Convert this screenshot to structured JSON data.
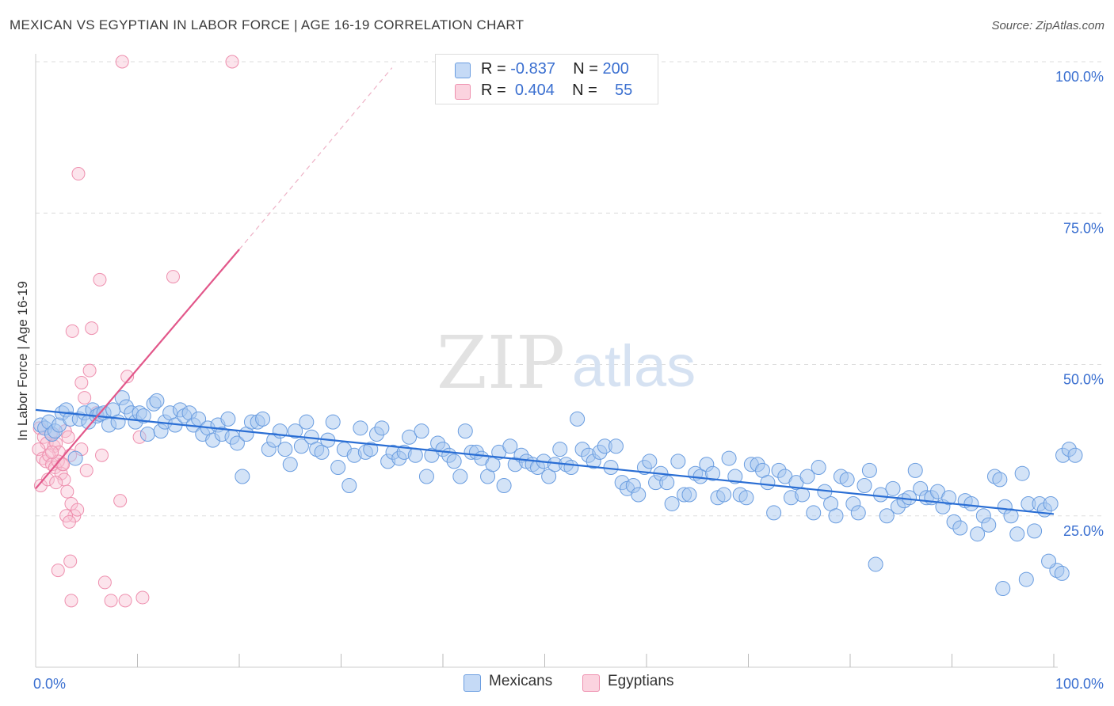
{
  "header": {
    "title": "MEXICAN VS EGYPTIAN IN LABOR FORCE | AGE 16-19 CORRELATION CHART",
    "source": "Source: ZipAtlas.com"
  },
  "watermark": {
    "zip": "ZIP",
    "atlas": "atlas"
  },
  "legend": {
    "rows": [
      {
        "r_label": "R =",
        "r_value": "-0.837",
        "n_label": "N =",
        "n_value": "200",
        "color": "#a8c8f0"
      },
      {
        "r_label": "R =",
        "r_value": "0.404",
        "n_label": "N =",
        "n_value": "55",
        "color": "#f5b8cb"
      }
    ],
    "bottom": [
      {
        "label": "Mexicans",
        "color": "#a8c8f0"
      },
      {
        "label": "Egyptians",
        "color": "#f5b8cb"
      }
    ]
  },
  "colors": {
    "mexicans_fill": "#a8c8f0",
    "mexicans_stroke": "#6a9de0",
    "mexicans_line": "#2a6ed4",
    "egyptians_fill": "#f8c4d4",
    "egyptians_stroke": "#ee8fae",
    "egyptians_line": "#e2578a",
    "tick_label": "#3a6fd0",
    "grid": "#dddddd"
  },
  "chart_data": {
    "type": "scatter",
    "title": "MEXICAN VS EGYPTIAN IN LABOR FORCE | AGE 16-19 CORRELATION CHART",
    "xlabel": "",
    "ylabel": "In Labor Force | Age 16-19",
    "xlim": [
      0,
      100
    ],
    "ylim": [
      0,
      100
    ],
    "x_tick_labels": [
      "0.0%",
      "100.0%"
    ],
    "y_ticks": [
      25,
      50,
      75,
      100
    ],
    "y_tick_labels": [
      "25.0%",
      "50.0%",
      "75.0%",
      "100.0%"
    ],
    "grid": true,
    "legend_position": "top-center",
    "series": [
      {
        "name": "Mexicans",
        "r": -0.837,
        "n": 200,
        "trend": {
          "x": [
            0,
            100
          ],
          "y": [
            42.5,
            25.3
          ]
        },
        "points": [
          [
            0.5,
            40
          ],
          [
            0.9,
            39.5
          ],
          [
            1.3,
            40.5
          ],
          [
            1.6,
            38.5
          ],
          [
            1.9,
            39
          ],
          [
            2.3,
            40
          ],
          [
            2.6,
            42
          ],
          [
            3.0,
            42.5
          ],
          [
            3.4,
            41
          ],
          [
            3.9,
            34.5
          ],
          [
            4.3,
            41
          ],
          [
            4.8,
            42
          ],
          [
            5.2,
            40.5
          ],
          [
            5.6,
            42.5
          ],
          [
            6.0,
            41.5
          ],
          [
            6.3,
            41.8
          ],
          [
            6.7,
            42
          ],
          [
            7.2,
            40
          ],
          [
            7.6,
            42.5
          ],
          [
            8.1,
            40.5
          ],
          [
            8.5,
            44.5
          ],
          [
            8.9,
            43
          ],
          [
            9.4,
            42
          ],
          [
            9.8,
            40.5
          ],
          [
            10.2,
            42
          ],
          [
            10.6,
            41.5
          ],
          [
            11.0,
            38.5
          ],
          [
            11.6,
            43.5
          ],
          [
            11.9,
            44
          ],
          [
            12.3,
            39
          ],
          [
            12.7,
            40.5
          ],
          [
            13.2,
            42
          ],
          [
            13.7,
            40
          ],
          [
            14.2,
            42.5
          ],
          [
            14.6,
            41.5
          ],
          [
            15.1,
            42
          ],
          [
            15.5,
            40
          ],
          [
            16.0,
            41
          ],
          [
            16.4,
            38.5
          ],
          [
            16.9,
            39.5
          ],
          [
            17.4,
            37.5
          ],
          [
            17.9,
            40
          ],
          [
            18.3,
            38.5
          ],
          [
            18.9,
            41
          ],
          [
            19.3,
            38
          ],
          [
            19.8,
            37
          ],
          [
            20.3,
            31.5
          ],
          [
            20.7,
            38.5
          ],
          [
            21.2,
            40.5
          ],
          [
            21.8,
            40.5
          ],
          [
            22.3,
            41
          ],
          [
            22.9,
            36
          ],
          [
            23.4,
            37.5
          ],
          [
            24.0,
            39
          ],
          [
            24.5,
            36
          ],
          [
            25.0,
            33.5
          ],
          [
            25.5,
            39
          ],
          [
            26.1,
            36.5
          ],
          [
            26.6,
            40.5
          ],
          [
            27.1,
            38
          ],
          [
            27.6,
            36
          ],
          [
            28.1,
            35.5
          ],
          [
            28.7,
            37.5
          ],
          [
            29.2,
            40.5
          ],
          [
            29.7,
            33
          ],
          [
            30.3,
            36
          ],
          [
            30.8,
            30
          ],
          [
            31.3,
            35
          ],
          [
            31.9,
            39.5
          ],
          [
            32.4,
            35.5
          ],
          [
            32.9,
            36
          ],
          [
            33.5,
            38.5
          ],
          [
            34.0,
            39.5
          ],
          [
            34.6,
            34
          ],
          [
            35.1,
            35.5
          ],
          [
            35.7,
            34.5
          ],
          [
            36.2,
            35.5
          ],
          [
            36.7,
            38
          ],
          [
            37.3,
            35
          ],
          [
            37.9,
            39
          ],
          [
            38.4,
            31.5
          ],
          [
            38.9,
            35
          ],
          [
            39.5,
            37
          ],
          [
            40.0,
            36
          ],
          [
            40.6,
            35
          ],
          [
            41.1,
            34
          ],
          [
            41.7,
            31.5
          ],
          [
            42.2,
            39
          ],
          [
            42.8,
            35.5
          ],
          [
            43.3,
            35.5
          ],
          [
            43.8,
            34.5
          ],
          [
            44.4,
            31.5
          ],
          [
            44.9,
            33.5
          ],
          [
            45.5,
            35.5
          ],
          [
            46.0,
            30
          ],
          [
            46.6,
            36.5
          ],
          [
            47.1,
            33.5
          ],
          [
            47.7,
            35
          ],
          [
            48.2,
            34
          ],
          [
            48.8,
            33.5
          ],
          [
            49.3,
            33
          ],
          [
            49.9,
            34
          ],
          [
            50.4,
            31.5
          ],
          [
            51.0,
            33.5
          ],
          [
            51.5,
            36
          ],
          [
            52.1,
            33.5
          ],
          [
            52.6,
            33
          ],
          [
            53.2,
            41
          ],
          [
            53.7,
            36
          ],
          [
            54.3,
            35
          ],
          [
            54.8,
            34
          ],
          [
            55.4,
            35.5
          ],
          [
            55.9,
            36.5
          ],
          [
            56.5,
            33
          ],
          [
            57.0,
            36.5
          ],
          [
            57.6,
            30.5
          ],
          [
            58.1,
            29.5
          ],
          [
            58.7,
            30
          ],
          [
            59.2,
            28.5
          ],
          [
            59.8,
            33
          ],
          [
            60.3,
            34
          ],
          [
            60.9,
            30.5
          ],
          [
            61.4,
            32
          ],
          [
            62.0,
            30.5
          ],
          [
            62.5,
            27
          ],
          [
            63.1,
            34
          ],
          [
            63.7,
            28.5
          ],
          [
            64.2,
            28.5
          ],
          [
            64.8,
            32
          ],
          [
            65.3,
            31.5
          ],
          [
            65.9,
            33.5
          ],
          [
            66.5,
            32
          ],
          [
            67.0,
            28
          ],
          [
            67.6,
            28.5
          ],
          [
            68.1,
            34.5
          ],
          [
            68.7,
            31.5
          ],
          [
            69.2,
            28.5
          ],
          [
            69.8,
            28
          ],
          [
            70.3,
            33.5
          ],
          [
            70.9,
            33.5
          ],
          [
            71.4,
            32.5
          ],
          [
            71.9,
            30.5
          ],
          [
            72.5,
            25.5
          ],
          [
            73.0,
            32.5
          ],
          [
            73.6,
            31.5
          ],
          [
            74.2,
            28
          ],
          [
            74.7,
            30.5
          ],
          [
            75.3,
            28.5
          ],
          [
            75.8,
            31.5
          ],
          [
            76.4,
            25.5
          ],
          [
            76.9,
            33
          ],
          [
            77.5,
            29
          ],
          [
            78.1,
            27
          ],
          [
            78.6,
            25
          ],
          [
            79.1,
            31.5
          ],
          [
            79.7,
            31
          ],
          [
            80.3,
            27
          ],
          [
            80.8,
            25.5
          ],
          [
            81.4,
            30
          ],
          [
            81.9,
            32.5
          ],
          [
            82.5,
            17
          ],
          [
            83.0,
            28.5
          ],
          [
            83.6,
            25
          ],
          [
            84.2,
            29.5
          ],
          [
            84.7,
            26.5
          ],
          [
            85.3,
            27.5
          ],
          [
            85.8,
            28
          ],
          [
            86.4,
            32.5
          ],
          [
            86.9,
            29.5
          ],
          [
            87.5,
            28
          ],
          [
            88.0,
            28
          ],
          [
            88.6,
            29
          ],
          [
            89.1,
            26.5
          ],
          [
            89.7,
            28
          ],
          [
            90.2,
            24
          ],
          [
            90.8,
            23
          ],
          [
            91.3,
            27.5
          ],
          [
            91.9,
            27
          ],
          [
            92.5,
            22
          ],
          [
            93.1,
            25
          ],
          [
            93.6,
            23.5
          ],
          [
            94.2,
            31.5
          ],
          [
            94.7,
            31
          ],
          [
            95.2,
            26.5
          ],
          [
            95.8,
            25
          ],
          [
            96.4,
            22
          ],
          [
            96.9,
            32
          ],
          [
            97.5,
            27
          ],
          [
            98.1,
            22.5
          ],
          [
            98.6,
            27
          ],
          [
            99.1,
            26
          ],
          [
            99.7,
            27
          ],
          [
            100.3,
            16
          ],
          [
            100.9,
            35
          ],
          [
            101.5,
            36
          ],
          [
            102.1,
            35
          ],
          [
            95.0,
            13
          ],
          [
            97.3,
            14.5
          ],
          [
            99.5,
            17.5
          ],
          [
            100.8,
            15.5
          ]
        ]
      },
      {
        "name": "Egyptians",
        "r": 0.404,
        "n": 55,
        "trend": {
          "x": [
            0,
            20
          ],
          "y": [
            29.5,
            69
          ]
        },
        "trend_dashed": {
          "x": [
            20,
            35
          ],
          "y": [
            69,
            99
          ]
        },
        "points": [
          [
            8.5,
            100
          ],
          [
            19.3,
            100
          ],
          [
            4.2,
            81.5
          ],
          [
            6.3,
            64
          ],
          [
            13.5,
            64.5
          ],
          [
            3.6,
            55.5
          ],
          [
            5.5,
            56
          ],
          [
            5.3,
            49
          ],
          [
            9.0,
            48
          ],
          [
            4.5,
            47
          ],
          [
            4.8,
            44.5
          ],
          [
            6.0,
            42
          ],
          [
            0.4,
            39.5
          ],
          [
            0.8,
            38
          ],
          [
            1.1,
            37
          ],
          [
            1.5,
            38.5
          ],
          [
            1.8,
            36.5
          ],
          [
            2.0,
            37
          ],
          [
            2.3,
            35.5
          ],
          [
            2.6,
            33.5
          ],
          [
            2.9,
            39
          ],
          [
            3.2,
            38
          ],
          [
            3.4,
            35
          ],
          [
            0.3,
            36
          ],
          [
            0.7,
            34.5
          ],
          [
            1.0,
            34
          ],
          [
            1.3,
            35
          ],
          [
            1.6,
            33.5
          ],
          [
            1.9,
            33
          ],
          [
            2.2,
            34
          ],
          [
            2.5,
            32
          ],
          [
            2.8,
            31
          ],
          [
            3.1,
            29
          ],
          [
            3.5,
            27
          ],
          [
            3.8,
            25
          ],
          [
            4.1,
            26
          ],
          [
            0.5,
            30
          ],
          [
            1.2,
            31
          ],
          [
            2.0,
            30.5
          ],
          [
            4.5,
            36
          ],
          [
            5.0,
            32.5
          ],
          [
            6.5,
            35
          ],
          [
            10.2,
            38
          ],
          [
            8.3,
            27.5
          ],
          [
            3.0,
            25
          ],
          [
            3.3,
            24
          ],
          [
            2.2,
            16
          ],
          [
            3.4,
            17.5
          ],
          [
            6.8,
            14
          ],
          [
            7.4,
            11
          ],
          [
            8.8,
            11
          ],
          [
            10.5,
            11.5
          ],
          [
            3.5,
            11
          ],
          [
            1.6,
            35.5
          ],
          [
            2.7,
            33.5
          ]
        ]
      }
    ]
  }
}
